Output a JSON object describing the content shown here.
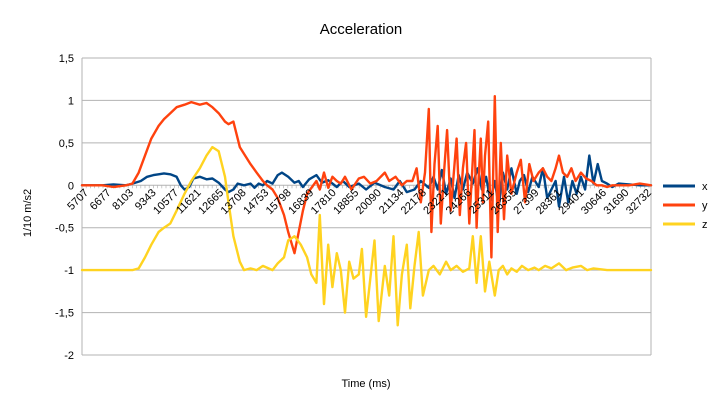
{
  "chart_data": {
    "type": "line",
    "title": "Acceleration",
    "xlabel": "Time (ms)",
    "ylabel": "1/10 m/s2",
    "ylim": [
      -2,
      1.5
    ],
    "yticks": [
      1.5,
      1,
      0.5,
      0,
      -0.5,
      -1,
      -1.5,
      -2
    ],
    "ytick_labels": [
      "1,5",
      "1",
      "0,5",
      "0",
      "-0,5",
      "-1",
      "-1,5",
      "-2"
    ],
    "xlim": [
      5707,
      32732
    ],
    "xtick_labels": [
      "5707",
      "6677",
      "8103",
      "9343",
      "10577",
      "11621",
      "12665",
      "13708",
      "14753",
      "15798",
      "16839",
      "17810",
      "18855",
      "20090",
      "21134",
      "22178",
      "23221",
      "24266",
      "25311",
      "26355",
      "27399",
      "28361",
      "29401",
      "30646",
      "31690",
      "32732"
    ],
    "grid": true,
    "legend": "right",
    "series": [
      {
        "name": "x",
        "color": "#004586",
        "x": [
          5707,
          6200,
          6677,
          7200,
          7800,
          8103,
          8500,
          8800,
          9100,
          9343,
          9600,
          9900,
          10200,
          10400,
          10577,
          10800,
          11000,
          11300,
          11621,
          11900,
          12200,
          12500,
          12665,
          12900,
          13100,
          13400,
          13708,
          13900,
          14100,
          14300,
          14500,
          14753,
          15000,
          15200,
          15500,
          15798,
          16000,
          16200,
          16500,
          16839,
          17100,
          17400,
          17810,
          18100,
          18400,
          18855,
          19200,
          19600,
          20090,
          20500,
          20800,
          21134,
          21500,
          21800,
          22178,
          22400,
          22600,
          22800,
          23000,
          23221,
          23400,
          23600,
          23800,
          24000,
          24266,
          24500,
          24700,
          24900,
          25100,
          25311,
          25500,
          25700,
          25900,
          26100,
          26355,
          26500,
          26700,
          26900,
          27100,
          27399,
          27600,
          27800,
          28000,
          28200,
          28361,
          28600,
          28800,
          29000,
          29200,
          29401,
          29600,
          29800,
          30000,
          30200,
          30400,
          30646,
          30900,
          31200,
          31690,
          32200,
          32732
        ],
        "y": [
          0,
          0,
          0,
          0.01,
          0,
          0.02,
          0.05,
          0.1,
          0.12,
          0.13,
          0.14,
          0.13,
          0.1,
          0,
          -0.05,
          -0.02,
          0.08,
          0.1,
          0.07,
          0.08,
          0.03,
          -0.05,
          -0.08,
          -0.05,
          0.02,
          0,
          0.02,
          -0.03,
          0.02,
          0,
          0.05,
          0.02,
          0.12,
          0.15,
          0.1,
          0.03,
          0.05,
          -0.02,
          0.07,
          0.12,
          0.03,
          0.06,
          -0.02,
          0.05,
          -0.02,
          0.02,
          -0.05,
          0.03,
          -0.02,
          -0.05,
          0.05,
          -0.08,
          -0.05,
          0.05,
          -0.03,
          0.1,
          -0.05,
          0.18,
          -0.1,
          0.08,
          -0.15,
          0.12,
          -0.05,
          0.15,
          0.02,
          0.2,
          -0.05,
          0.1,
          -0.18,
          0.05,
          -0.25,
          0.15,
          -0.05,
          0.2,
          -0.1,
          0.05,
          0.12,
          -0.08,
          0.1,
          -0.02,
          0.2,
          -0.15,
          -0.05,
          0.05,
          -0.25,
          0.1,
          -0.2,
          0.05,
          -0.1,
          0.1,
          -0.05,
          0.35,
          0.02,
          0.25,
          0.05,
          0.02,
          -0.02,
          0.02,
          0.01,
          0,
          0
        ]
      },
      {
        "name": "y",
        "color": "#ff420e",
        "x": [
          5707,
          6200,
          6677,
          7200,
          7800,
          8103,
          8400,
          8700,
          9000,
          9343,
          9600,
          9900,
          10200,
          10577,
          10900,
          11300,
          11621,
          11900,
          12200,
          12500,
          12665,
          12900,
          13200,
          13708,
          14000,
          14300,
          14500,
          14753,
          15000,
          15300,
          15500,
          15798,
          16000,
          16200,
          16400,
          16839,
          17000,
          17200,
          17400,
          17600,
          17810,
          18000,
          18200,
          18500,
          18855,
          19100,
          19400,
          19700,
          20090,
          20300,
          20600,
          20900,
          21134,
          21400,
          21600,
          21800,
          22000,
          22178,
          22300,
          22450,
          22600,
          22750,
          22900,
          23050,
          23221,
          23350,
          23500,
          23650,
          23800,
          23950,
          24100,
          24266,
          24350,
          24450,
          24550,
          24650,
          24750,
          24850,
          25000,
          25150,
          25311,
          25450,
          25600,
          25750,
          25900,
          26100,
          26355,
          26550,
          26750,
          26950,
          27150,
          27399,
          27600,
          27800,
          28000,
          28200,
          28361,
          28550,
          28750,
          28950,
          29150,
          29401,
          29650,
          29900,
          30150,
          30400,
          30646,
          30900,
          31200,
          31690,
          32200,
          32732
        ],
        "y": [
          0,
          0,
          0,
          -0.02,
          0,
          0.02,
          0.15,
          0.35,
          0.55,
          0.7,
          0.78,
          0.85,
          0.92,
          0.95,
          0.98,
          0.95,
          0.97,
          0.92,
          0.85,
          0.75,
          0.72,
          0.75,
          0.45,
          0.25,
          0.15,
          0.05,
          0,
          -0.05,
          -0.15,
          -0.35,
          -0.55,
          -0.8,
          -0.55,
          -0.3,
          -0.1,
          0.05,
          -0.05,
          0.15,
          -0.03,
          0.1,
          0.05,
          0.02,
          0.1,
          -0.05,
          0.08,
          0.1,
          0.02,
          0.05,
          0.15,
          0.05,
          0.1,
          0,
          0.05,
          0.05,
          0.2,
          -0.2,
          0.15,
          0.9,
          -0.55,
          0.25,
          0.7,
          -0.45,
          0.15,
          0.65,
          -0.3,
          0.1,
          0.55,
          -0.35,
          0.2,
          0.5,
          -0.45,
          0.3,
          0.65,
          -0.5,
          0.1,
          0.55,
          -0.2,
          0.35,
          0.75,
          -0.85,
          1.05,
          -0.55,
          0.5,
          -0.4,
          0.35,
          -0.1,
          0.15,
          0.3,
          -0.2,
          0.25,
          0.05,
          0.15,
          0.2,
          0.1,
          0.05,
          0.2,
          0.35,
          0.15,
          0.1,
          0.2,
          0.05,
          0.15,
          0.08,
          0.05,
          0,
          0,
          -0.02,
          0,
          0,
          0,
          0.02,
          0
        ]
      },
      {
        "name": "z",
        "color": "#ffd320",
        "x": [
          5707,
          6200,
          6677,
          7200,
          7800,
          8103,
          8400,
          8700,
          9000,
          9343,
          9600,
          9900,
          10200,
          10577,
          10900,
          11300,
          11621,
          11900,
          12200,
          12500,
          12665,
          12900,
          13200,
          13400,
          13708,
          14000,
          14300,
          14753,
          15000,
          15300,
          15500,
          15798,
          16100,
          16400,
          16600,
          16839,
          17000,
          17200,
          17400,
          17600,
          17810,
          18000,
          18200,
          18400,
          18600,
          18855,
          19000,
          19200,
          19400,
          19600,
          19800,
          20090,
          20300,
          20500,
          20700,
          20900,
          21134,
          21300,
          21500,
          21700,
          21900,
          22178,
          22400,
          22700,
          23000,
          23221,
          23500,
          23800,
          24100,
          24266,
          24450,
          24650,
          24850,
          25050,
          25311,
          25500,
          25700,
          25900,
          26100,
          26355,
          26600,
          26900,
          27200,
          27399,
          27700,
          28000,
          28361,
          28700,
          29000,
          29401,
          29700,
          30000,
          30646,
          31200,
          31690,
          32200,
          32732
        ],
        "y": [
          -1,
          -1,
          -1,
          -1,
          -1,
          -1,
          -0.98,
          -0.85,
          -0.7,
          -0.55,
          -0.5,
          -0.45,
          -0.3,
          -0.1,
          0.05,
          0.2,
          0.35,
          0.45,
          0.4,
          0.1,
          -0.2,
          -0.6,
          -0.9,
          -1,
          -0.98,
          -1,
          -0.95,
          -1,
          -0.92,
          -0.85,
          -0.65,
          -0.6,
          -0.7,
          -0.85,
          -1.05,
          -1.15,
          -0.35,
          -1.4,
          -0.7,
          -1.2,
          -0.8,
          -1.0,
          -1.5,
          -0.9,
          -1.1,
          -1.05,
          -0.75,
          -1.55,
          -1.1,
          -0.65,
          -1.6,
          -0.95,
          -1.3,
          -0.6,
          -1.65,
          -1.05,
          -0.7,
          -1.45,
          -0.95,
          -0.55,
          -1.3,
          -1.0,
          -0.95,
          -1.05,
          -0.9,
          -1.0,
          -0.95,
          -1.02,
          -0.98,
          -0.6,
          -1.15,
          -0.6,
          -1.25,
          -0.9,
          -1.3,
          -1.0,
          -0.95,
          -1.05,
          -0.98,
          -1.02,
          -0.95,
          -1.0,
          -0.97,
          -1.0,
          -0.95,
          -0.98,
          -0.92,
          -1.0,
          -0.97,
          -0.95,
          -1.0,
          -0.98,
          -1,
          -1,
          -1,
          -1,
          -1
        ]
      }
    ]
  }
}
